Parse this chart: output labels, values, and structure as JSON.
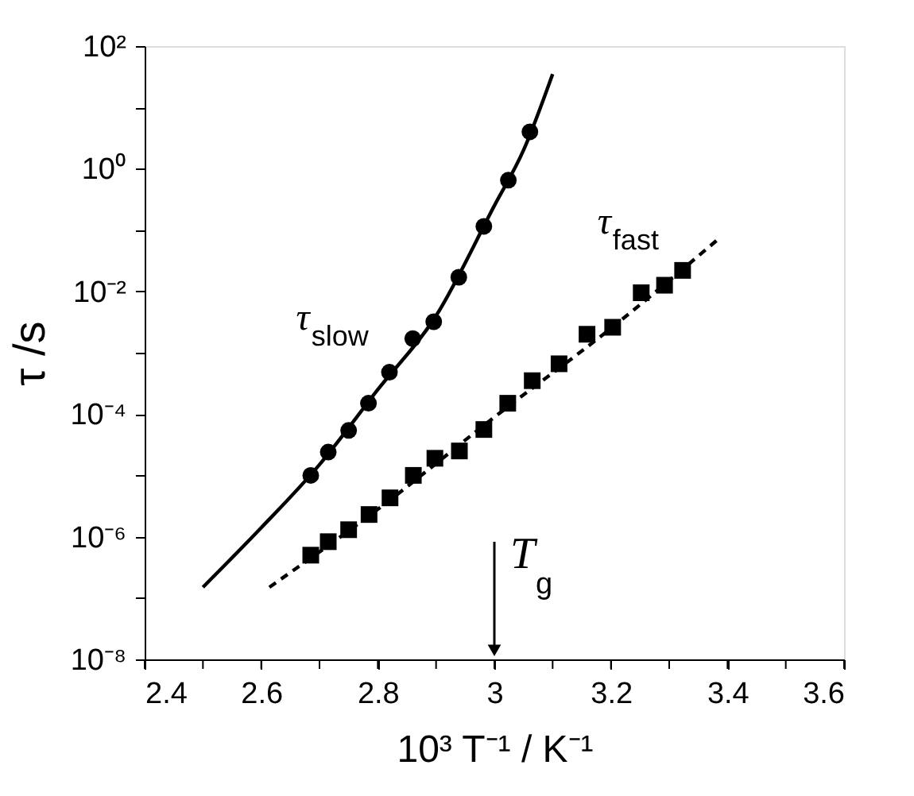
{
  "chart_data": {
    "type": "scatter",
    "xlabel": "10³ T⁻¹ / K⁻¹",
    "ylabel": "τ /s",
    "log": "y",
    "grid": false,
    "legend": false,
    "xlim": [
      2.4,
      3.6
    ],
    "xticks": [
      2.4,
      {
        "value": 2.5,
        "label": null
      },
      2.6,
      {
        "value": 2.7,
        "label": null
      },
      2.8,
      {
        "value": 2.9,
        "label": null
      },
      3,
      {
        "value": 3.1,
        "label": null
      },
      3.2,
      {
        "value": 3.3,
        "label": null
      },
      3.4,
      {
        "value": 3.5,
        "label": null
      },
      3.6
    ],
    "ylim": [
      1e-08,
      100
    ],
    "yticks": [
      {
        "value": 1e-08,
        "label": "10⁻⁸"
      },
      {
        "value": 1e-07,
        "label": null
      },
      {
        "value": 1e-06,
        "label": "10⁻⁶"
      },
      {
        "value": 1e-05,
        "label": null
      },
      {
        "value": 0.0001,
        "label": "10⁻⁴"
      },
      {
        "value": 0.001,
        "label": null
      },
      {
        "value": 0.01,
        "label": "10⁻²"
      },
      {
        "value": 0.1,
        "label": null
      },
      {
        "value": 1,
        "label": "10⁰"
      },
      {
        "value": 10,
        "label": null
      },
      {
        "value": 100,
        "label": "10²"
      }
    ],
    "series": [
      {
        "type": "line",
        "color": "#000000",
        "line_style": "solid",
        "marker": "none",
        "x": [
          2.5,
          2.6,
          2.7,
          2.8,
          2.9,
          3.0,
          3.05,
          3.1
        ],
        "values": [
          1.5e-07,
          1.4e-06,
          1.5e-05,
          0.00025,
          0.004,
          0.25,
          2,
          35
        ]
      },
      {
        "type": "scatter",
        "name": "τ$_{slow}$",
        "color": "#000000",
        "marker": "circle",
        "x": [
          2.685,
          2.715,
          2.75,
          2.784,
          2.82,
          2.86,
          2.896,
          2.939,
          2.982,
          3.024,
          3.061
        ],
        "values": [
          1e-05,
          2.4e-05,
          5.4e-05,
          0.00015,
          0.00048,
          0.0017,
          0.0032,
          0.017,
          0.115,
          0.65,
          4.0
        ]
      },
      {
        "type": "line",
        "color": "#000000",
        "line_style": "dashed",
        "marker": "none",
        "x": [
          2.614,
          2.8,
          3.0,
          3.2,
          3.384
        ],
        "values": [
          1.5e-07,
          2.8e-06,
          8.9e-05,
          0.0025,
          0.071
        ]
      },
      {
        "type": "scatter",
        "name": "τ$_{fast}$",
        "color": "#000000",
        "marker": "square",
        "x": [
          2.685,
          2.715,
          2.75,
          2.785,
          2.821,
          2.861,
          2.898,
          2.94,
          2.982,
          3.023,
          3.065,
          3.111,
          3.159,
          3.203,
          3.252,
          3.292,
          3.323
        ],
        "values": [
          5e-07,
          8.3e-07,
          1.3e-06,
          2.3e-06,
          4.3e-06,
          1e-05,
          1.9e-05,
          2.5e-05,
          5.6e-05,
          0.00015,
          0.00035,
          0.00066,
          0.002,
          0.0026,
          0.0095,
          0.0126,
          0.022
        ]
      }
    ],
    "annotations": [
      {
        "text": "T$_{g}$",
        "x": 3.0,
        "y": 1.4e-08
      }
    ]
  }
}
